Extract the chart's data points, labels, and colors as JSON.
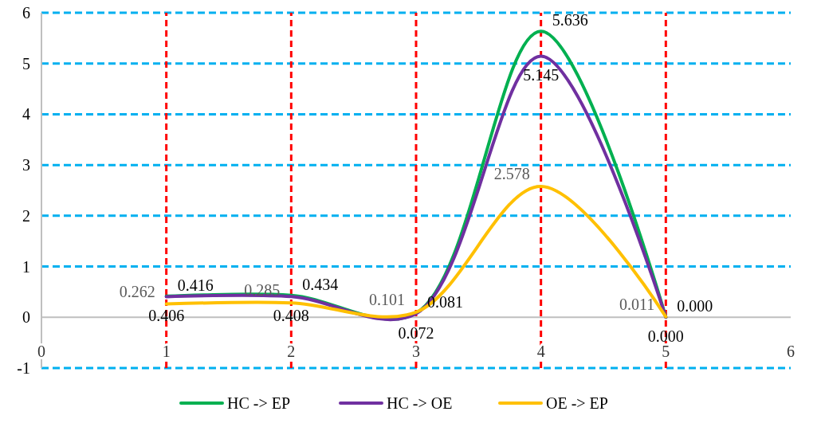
{
  "chart_data": {
    "type": "line",
    "x": [
      1,
      2,
      3,
      4,
      5
    ],
    "series": [
      {
        "name": "HC -> EP",
        "color": "#00b050",
        "values": [
          0.416,
          0.434,
          0.081,
          5.636,
          0
        ],
        "value_labels": [
          "0.416",
          "0.434",
          "0.081",
          "5.636",
          "0.000"
        ]
      },
      {
        "name": "HC -> OE",
        "color": "#7030a0",
        "values": [
          0.406,
          0.408,
          0.072,
          5.145,
          0
        ],
        "value_labels": [
          "0.406",
          "0.408",
          "0.072",
          "5.145",
          "0.000"
        ]
      },
      {
        "name": "OE -> EP",
        "color": "#ffc000",
        "values": [
          0.262,
          0.285,
          0.101,
          2.578,
          0.011
        ],
        "value_labels": [
          "0.262",
          "0.285",
          "0.101",
          "2.578",
          "0.011"
        ]
      }
    ],
    "xlim": [
      0,
      6
    ],
    "xticks": [
      0,
      1,
      2,
      3,
      4,
      5,
      6
    ],
    "ylim": [
      -1,
      6
    ],
    "yticks": [
      -1,
      0,
      1,
      2,
      3,
      4,
      5,
      6
    ],
    "grid": "y",
    "legend": "bottom",
    "marker": "none",
    "line_style": "solid",
    "ref_lines": [
      {
        "axis": "x",
        "value": 1,
        "color": "#ff0000",
        "line_style": "dashed"
      },
      {
        "axis": "x",
        "value": 2,
        "color": "#ff0000",
        "line_style": "dashed"
      },
      {
        "axis": "x",
        "value": 3,
        "color": "#ff0000",
        "line_style": "dashed"
      },
      {
        "axis": "x",
        "value": 4,
        "color": "#ff0000",
        "line_style": "dashed"
      },
      {
        "axis": "x",
        "value": 5,
        "color": "#ff0000",
        "line_style": "dashed"
      }
    ]
  }
}
